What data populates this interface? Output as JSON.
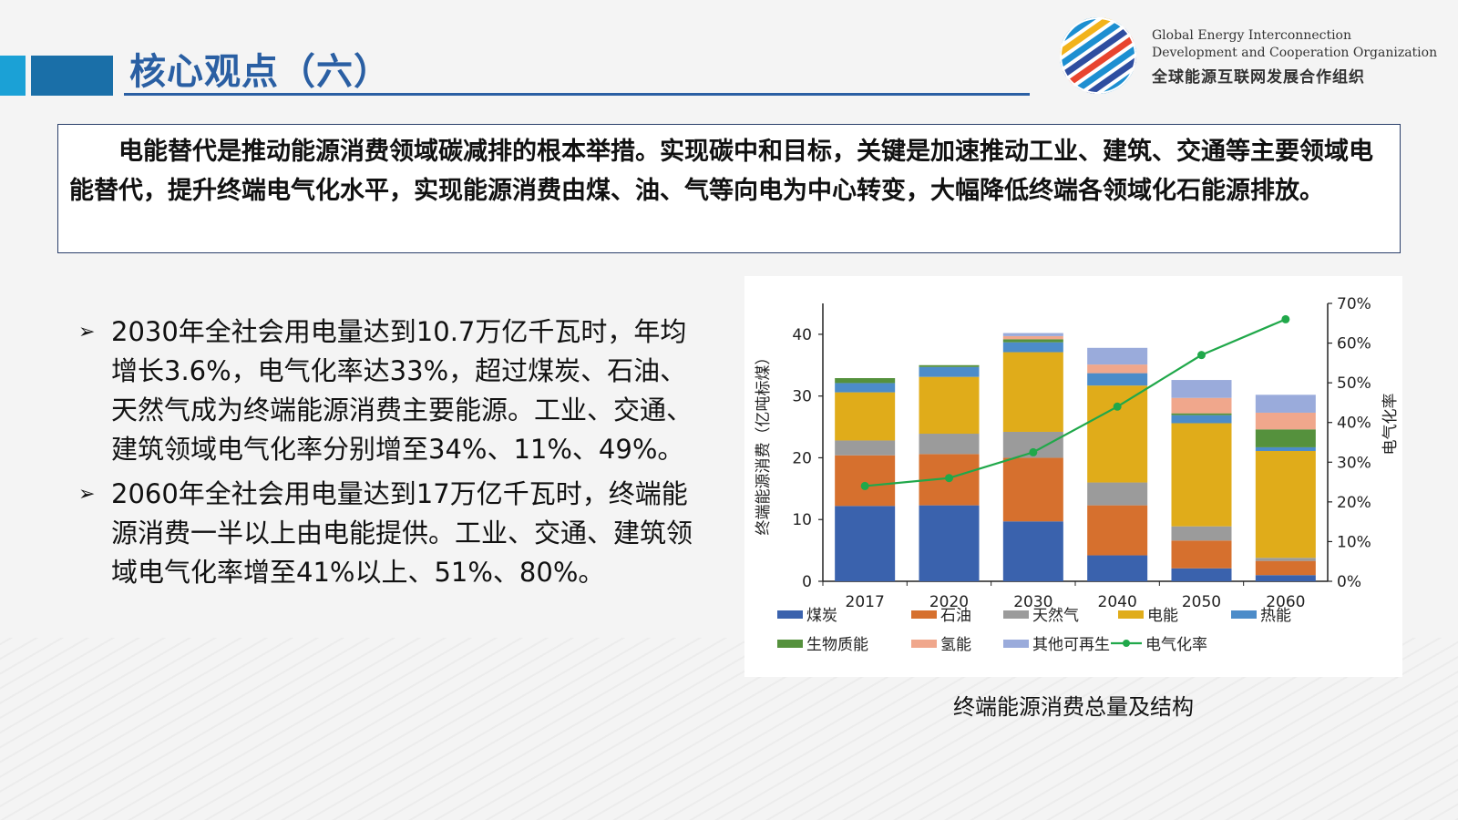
{
  "header": {
    "title": "核心观点（六）",
    "org_en_line1": "Global Energy Interconnection",
    "org_en_line2": "Development and Cooperation Organization",
    "org_cn": "全球能源互联网发展合作组织"
  },
  "summary": {
    "text": "电能替代是推动能源消费领域碳减排的根本举措。实现碳中和目标，关键是加速推动工业、建筑、交通等主要领域电能替代，提升终端电气化水平，实现能源消费由煤、油、气等向电为中心转变，大幅降低终端各领域化石能源排放。"
  },
  "bullets": [
    {
      "text": "2030年全社会用电量达到10.7万亿千瓦时，年均增长3.6%，电气化率达33%，超过煤炭、石油、天然气成为终端能源消费主要能源。工业、交通、建筑领域电气化率分别增至34%、11%、49%。"
    },
    {
      "text": "2060年全社会用电量达到17万亿千瓦时，终端能源消费一半以上由电能提供。工业、交通、建筑领域电气化率增至41%以上、51%、80%。"
    }
  ],
  "chart_caption": "终端能源消费总量及结构",
  "chart_data": {
    "type": "bar",
    "stacked": true,
    "title": "终端能源消费总量及结构",
    "categories": [
      "2017",
      "2020",
      "2030",
      "2040",
      "2050",
      "2060"
    ],
    "ylabel": "终端能源消费（亿吨标煤）",
    "ylim": [
      0,
      45
    ],
    "yticks": [
      0,
      10,
      20,
      30,
      40
    ],
    "y2label": "电气化率",
    "y2lim": [
      0,
      70
    ],
    "y2ticks": [
      "0%",
      "10%",
      "20%",
      "30%",
      "40%",
      "50%",
      "60%",
      "70%"
    ],
    "series": [
      {
        "name": "煤炭",
        "color": "#3a62ad",
        "values": [
          12.2,
          12.3,
          9.7,
          4.2,
          2.1,
          1.0
        ]
      },
      {
        "name": "石油",
        "color": "#d6702e",
        "values": [
          8.2,
          8.3,
          10.3,
          8.1,
          4.5,
          2.3
        ]
      },
      {
        "name": "天然气",
        "color": "#9b9b9b",
        "values": [
          2.4,
          3.3,
          4.2,
          3.7,
          2.3,
          0.5
        ]
      },
      {
        "name": "电能",
        "color": "#e0ac1a",
        "values": [
          7.8,
          9.2,
          12.9,
          15.7,
          16.7,
          17.3
        ]
      },
      {
        "name": "热能",
        "color": "#4c8cc9",
        "values": [
          1.5,
          1.6,
          1.6,
          2.0,
          1.3,
          0.6
        ]
      },
      {
        "name": "生物质能",
        "color": "#55913d",
        "values": [
          0.8,
          0.3,
          0.5,
          0.0,
          0.3,
          2.9
        ]
      },
      {
        "name": "氢能",
        "color": "#f0a78c",
        "values": [
          0.0,
          0.0,
          0.5,
          1.4,
          2.5,
          2.7
        ]
      },
      {
        "name": "其他可再生",
        "color": "#9aabdb",
        "values": [
          0.0,
          0.0,
          0.5,
          2.7,
          2.9,
          2.9
        ]
      }
    ],
    "line": {
      "name": "电气化率",
      "color": "#20a84a",
      "axis": "right",
      "values": [
        24,
        26,
        32.5,
        44,
        57,
        66
      ]
    }
  }
}
